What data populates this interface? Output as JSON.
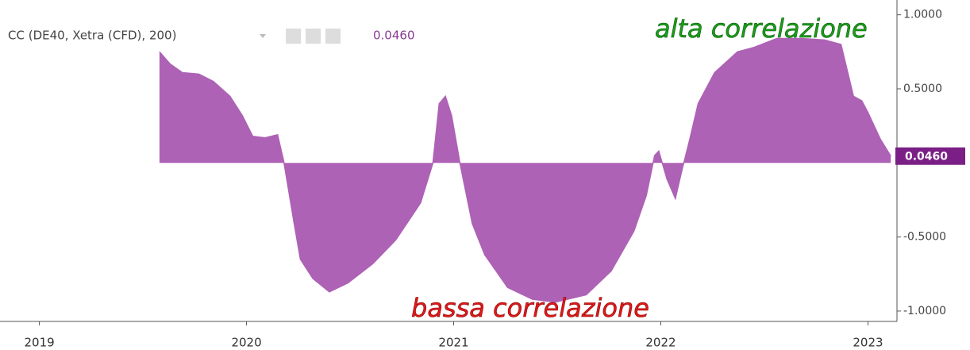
{
  "chart_data": {
    "type": "area",
    "legend": "CC (DE40, Xetra (CFD), 200)",
    "legend_value": "0.0460",
    "last_value_label": "0.0460",
    "annotations": [
      "alta correlazione",
      "bassa correlazione"
    ],
    "color": "#ad62b5",
    "x": [
      2019.58,
      2019.63,
      2019.69,
      2019.77,
      2019.84,
      2019.92,
      2019.98,
      2020.03,
      2020.09,
      2020.15,
      2020.18,
      2020.23,
      2020.26,
      2020.32,
      2020.4,
      2020.49,
      2020.61,
      2020.72,
      2020.84,
      2020.9,
      2020.93,
      2020.96,
      2020.99,
      2021.03,
      2021.09,
      2021.15,
      2021.26,
      2021.38,
      2021.49,
      2021.64,
      2021.76,
      2021.87,
      2021.93,
      2021.97,
      2021.99,
      2022.03,
      2022.07,
      2022.1,
      2022.14,
      2022.18,
      2022.26,
      2022.37,
      2022.45,
      2022.56,
      2022.68,
      2022.79,
      2022.87,
      2022.93,
      2022.97,
      2023.0,
      2023.06,
      2023.11
    ],
    "values": [
      0.75,
      0.67,
      0.61,
      0.6,
      0.55,
      0.45,
      0.32,
      0.18,
      0.17,
      0.19,
      0.01,
      -0.41,
      -0.65,
      -0.78,
      -0.87,
      -0.81,
      -0.68,
      -0.52,
      -0.27,
      0,
      0.4,
      0.45,
      0.32,
      0,
      -0.41,
      -0.62,
      -0.84,
      -0.92,
      -0.94,
      -0.89,
      -0.73,
      -0.46,
      -0.22,
      0.05,
      0.08,
      -0.11,
      -0.24,
      -0.06,
      0.16,
      0.4,
      0.61,
      0.75,
      0.78,
      0.84,
      0.84,
      0.83,
      0.8,
      0.45,
      0.42,
      0.34,
      0.16,
      0.046
    ],
    "xlim": [
      2018.81,
      2023.14
    ],
    "xticks": [
      2019,
      2020,
      2021,
      2022,
      2023
    ],
    "ylim": [
      -1.07,
      1.1
    ],
    "yticks": [
      {
        "value": 1,
        "label": "1.0000"
      },
      {
        "value": 0.5,
        "label": "0.5000"
      },
      {
        "value": -0.5,
        "label": "-0.5000"
      },
      {
        "value": -1,
        "label": "-1.0000"
      }
    ]
  }
}
